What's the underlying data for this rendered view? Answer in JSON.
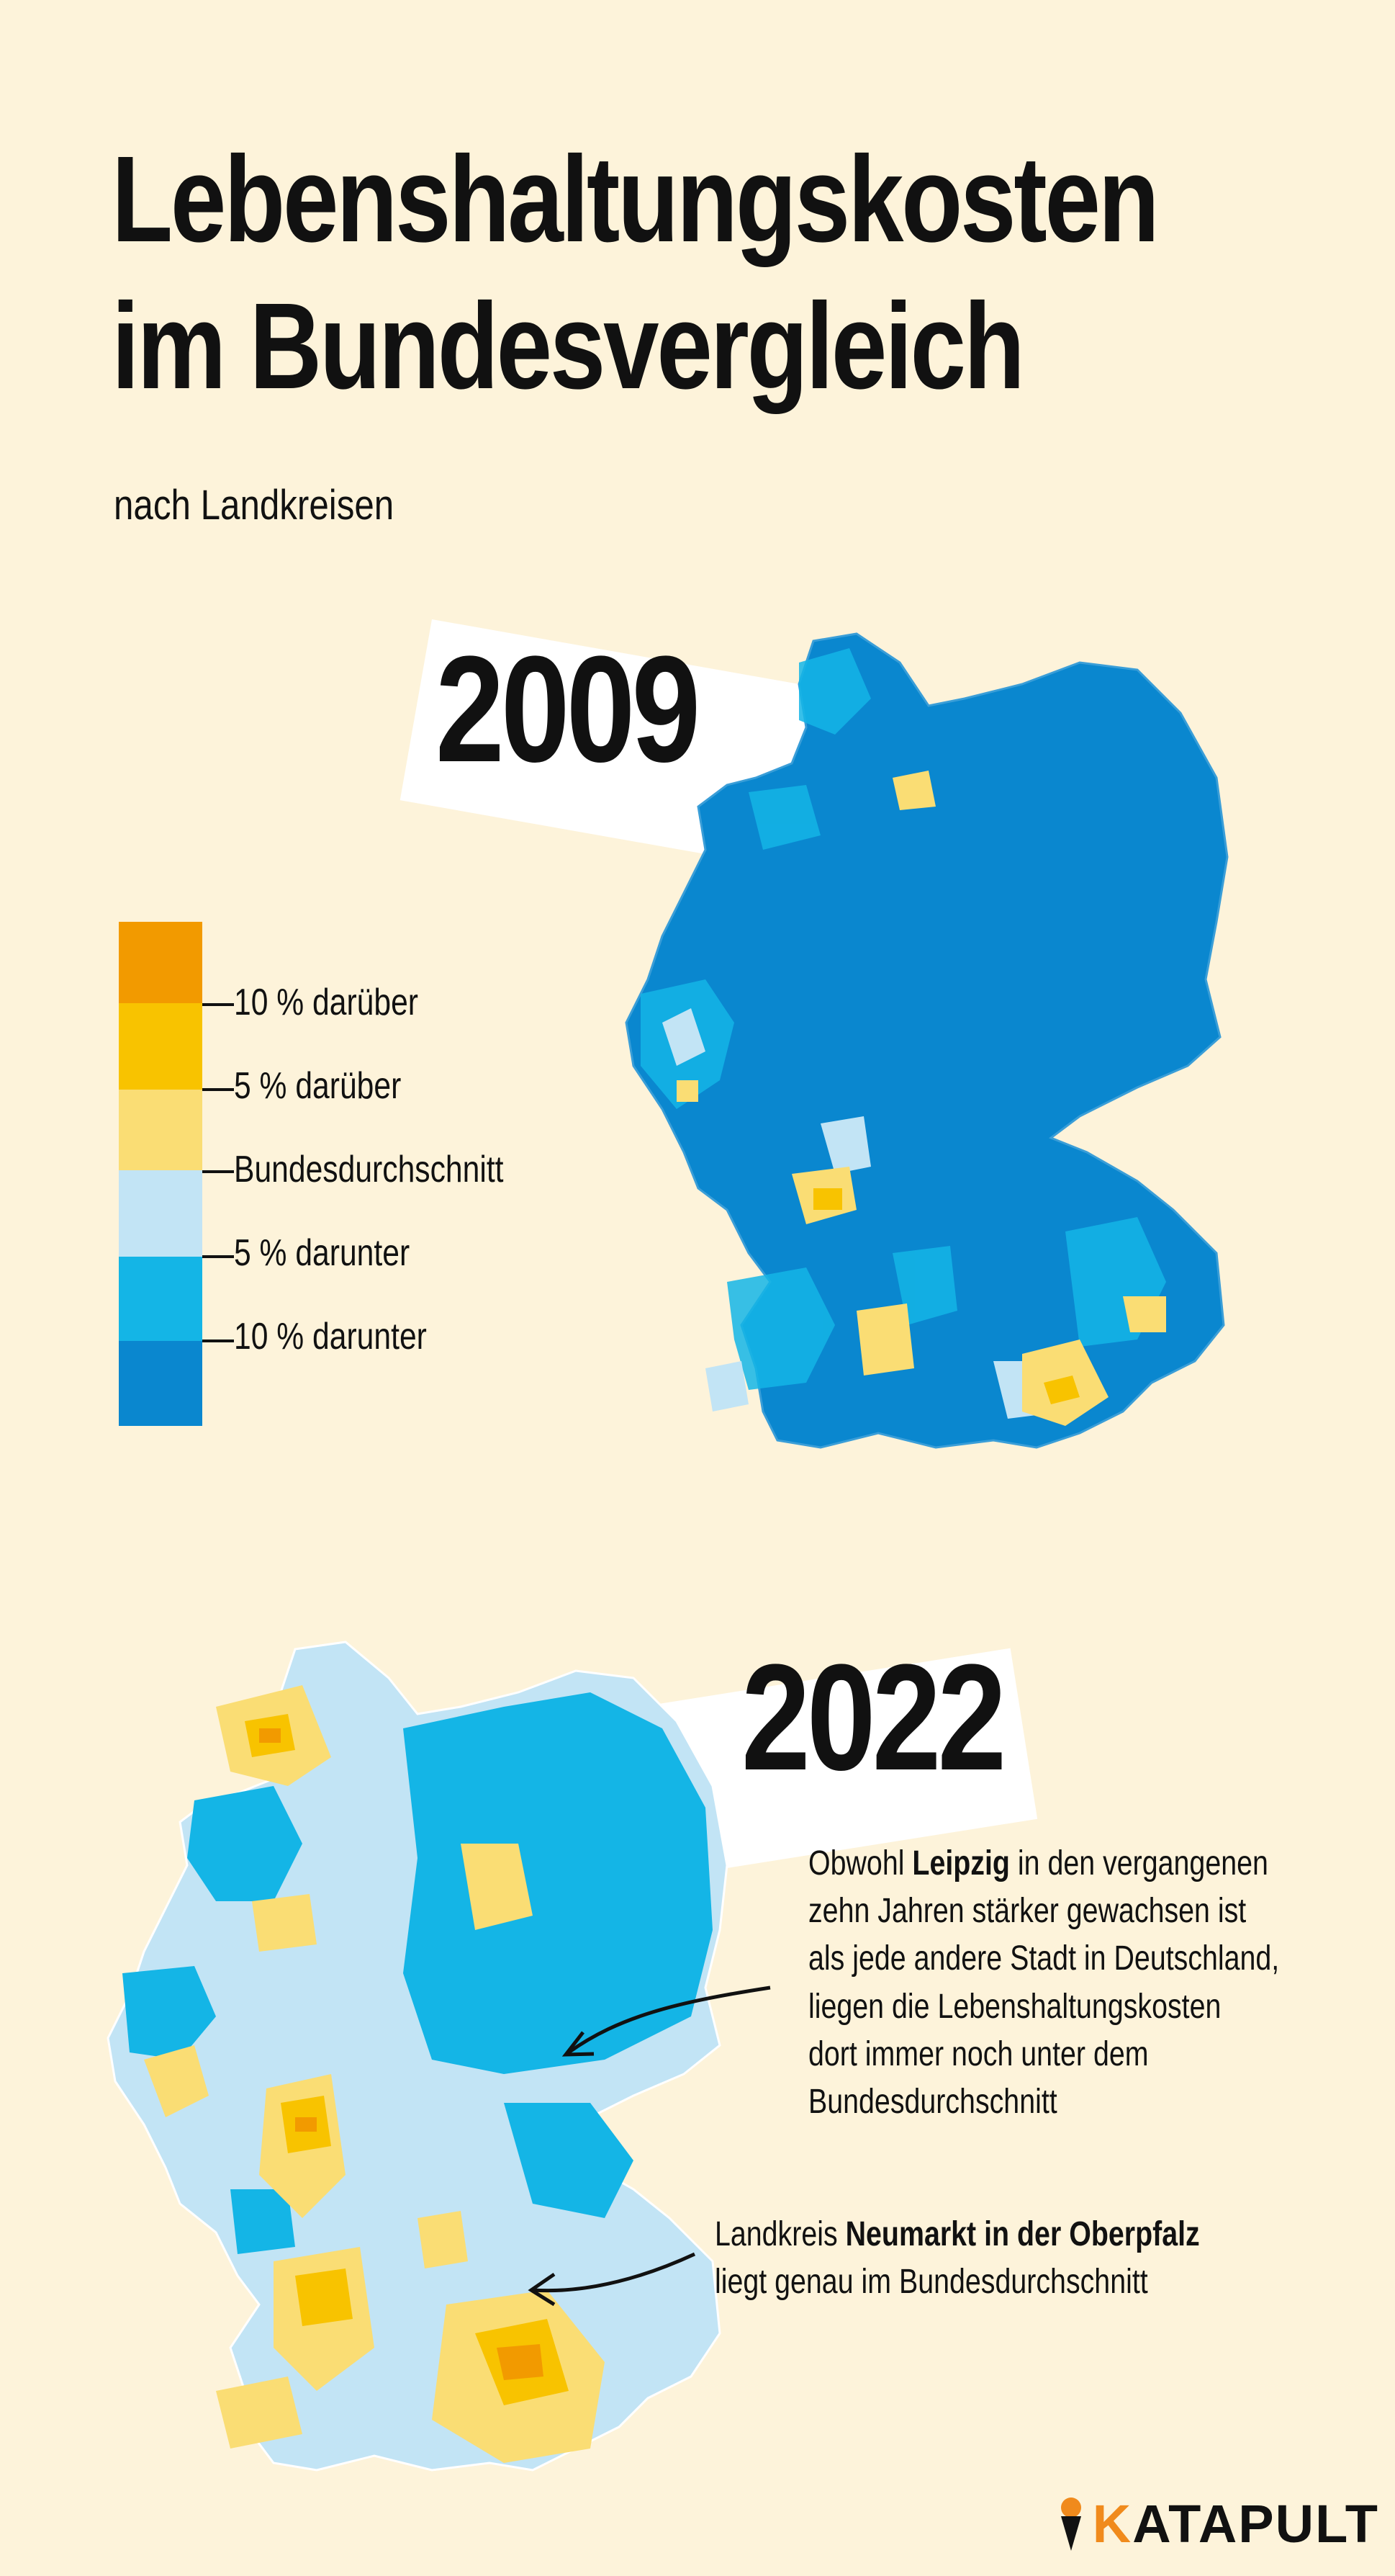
{
  "title": {
    "line1": "Lebenshaltungskosten",
    "line2": "im Bundesvergleich"
  },
  "subtitle": "nach Landkreisen",
  "maps": [
    {
      "year": "2009"
    },
    {
      "year": "2022"
    }
  ],
  "legend": {
    "items": [
      {
        "label": "10 % darüber",
        "color": "#f29a00"
      },
      {
        "label": "5 % darüber",
        "color": "#f8c300"
      },
      {
        "label": "Bundesdurchschnitt",
        "color": "#fadd74"
      },
      {
        "label": "5 % darunter",
        "color": "#c2e4f5"
      },
      {
        "label": "10 % darunter",
        "color": "#14b5e6"
      }
    ],
    "bottom_color": "#0a87cf"
  },
  "annotations": {
    "leipzig": {
      "pre": "Obwohl ",
      "bold": "Leipzig",
      "post": " in den vergangenen",
      "lines": [
        "zehn Jahren stärker gewachsen ist",
        "als jede andere Stadt in Deutschland,",
        "liegen die Lebenshaltungskosten",
        "dort immer noch unter dem",
        "Bundesdurchschnitt"
      ]
    },
    "neumarkt": {
      "pre": "Landkreis ",
      "bold": "Neumarkt in der Oberpfalz",
      "line2": "liegt genau im Bundesdurchschnitt"
    }
  },
  "brand": {
    "first": "K",
    "rest": "ATAPULT"
  }
}
